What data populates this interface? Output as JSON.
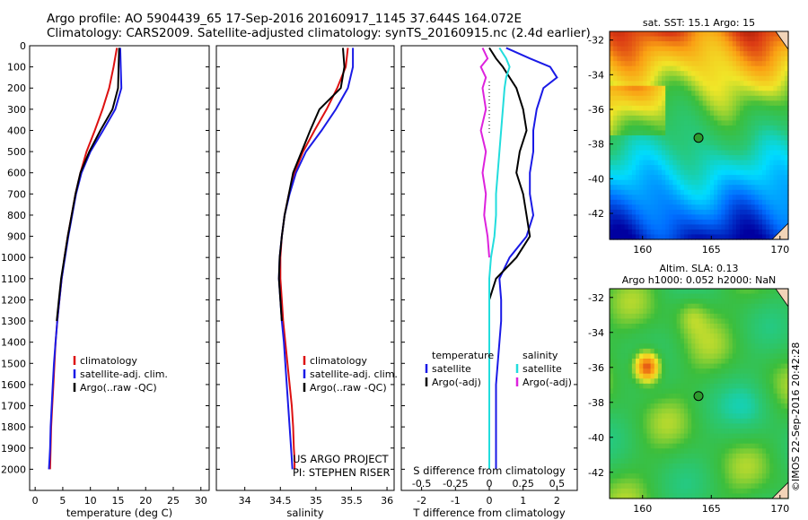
{
  "titles": {
    "line1": "Argo profile: AO 5904439_65 17-Sep-2016 20160917_1145 37.644S 164.072E",
    "line2": "Climatology: CARS2009. Satellite-adjusted climatology: synTS_20160915.nc (2.4d earlier)"
  },
  "colors": {
    "red": "#dd1111",
    "blue": "#1a1ae6",
    "black": "#000000",
    "cyan": "#22dddd",
    "magenta": "#dd22dd"
  },
  "credit": "©IMOS 22-Sep-2016 20:42:28",
  "project": {
    "line1": "US ARGO PROJECT",
    "line2": "PI: STEPHEN RISER"
  },
  "depth_ticks": [
    0,
    100,
    200,
    300,
    400,
    500,
    600,
    700,
    800,
    900,
    1000,
    1100,
    1200,
    1300,
    1400,
    1500,
    1600,
    1700,
    1800,
    1900,
    2000
  ],
  "chart_data": [
    {
      "type": "line",
      "xlabel": "temperature (deg C)",
      "xlim": [
        -1,
        31.5
      ],
      "ylim": [
        2100,
        0
      ],
      "x_ticks": [
        0,
        5,
        10,
        15,
        20,
        25,
        30
      ],
      "legend": [
        "climatology",
        "satellite-adj. clim.",
        "Argo(..raw -QC)"
      ],
      "depth": [
        10,
        100,
        200,
        300,
        400,
        500,
        600,
        700,
        800,
        900,
        1000,
        1100,
        1200,
        1300,
        1400,
        1500,
        1600,
        1700,
        1800,
        1900,
        1950,
        2000
      ],
      "series": [
        {
          "name": "climatology",
          "color": "#dd1111",
          "x": [
            14.8,
            14.2,
            13.4,
            12.2,
            10.8,
            9.3,
            8.2,
            7.3,
            6.6,
            5.9,
            5.3,
            4.8,
            4.4,
            4.0,
            3.7,
            3.5,
            3.3,
            3.1,
            2.9,
            2.8,
            2.75,
            2.7
          ]
        },
        {
          "name": "satellite-adj. clim.",
          "color": "#1a1ae6",
          "x": [
            15.4,
            15.5,
            15.6,
            14.5,
            12.3,
            10.0,
            8.4,
            7.4,
            6.7,
            6.0,
            5.4,
            4.8,
            4.4,
            4.0,
            3.7,
            3.4,
            3.2,
            3.0,
            2.8,
            2.7,
            2.6,
            2.5
          ]
        },
        {
          "name": "Argo(..raw -QC)",
          "color": "#000000",
          "x": [
            15.2,
            15.1,
            15.0,
            14.0,
            11.8,
            9.8,
            8.2,
            7.3,
            6.6,
            5.9,
            5.3,
            4.7,
            4.3,
            3.9
          ]
        }
      ]
    },
    {
      "type": "line",
      "xlabel": "salinity",
      "xlim": [
        33.6,
        36.1
      ],
      "ylim": [
        2100,
        0
      ],
      "x_ticks": [
        34,
        34.5,
        35,
        35.5,
        36
      ],
      "legend": [
        "climatology",
        "satellite-adj. clim.",
        "Argo(..raw -QC)"
      ],
      "depth": [
        10,
        100,
        200,
        300,
        400,
        500,
        600,
        700,
        800,
        900,
        1000,
        1100,
        1200,
        1300,
        1400,
        1500,
        1600,
        1700,
        1800,
        1900,
        1950,
        2000
      ],
      "series": [
        {
          "name": "climatology",
          "color": "#dd1111",
          "x": [
            35.45,
            35.42,
            35.3,
            35.15,
            34.98,
            34.82,
            34.7,
            34.62,
            34.56,
            34.52,
            34.5,
            34.5,
            34.52,
            34.54,
            34.57,
            34.6,
            34.63,
            34.66,
            34.68,
            34.69,
            34.7,
            34.7
          ]
        },
        {
          "name": "satellite-adj. clim.",
          "color": "#1a1ae6",
          "x": [
            35.52,
            35.52,
            35.45,
            35.28,
            35.08,
            34.86,
            34.72,
            34.63,
            34.56,
            34.52,
            34.49,
            34.48,
            34.5,
            34.52,
            34.55,
            34.57,
            34.59,
            34.61,
            34.63,
            34.65,
            34.66,
            34.67
          ]
        },
        {
          "name": "Argo(..raw -QC)",
          "color": "#000000",
          "x": [
            35.38,
            35.4,
            35.35,
            35.05,
            34.92,
            34.8,
            34.68,
            34.62,
            34.56,
            34.52,
            34.49,
            34.48,
            34.5,
            34.52
          ]
        }
      ]
    },
    {
      "type": "line",
      "xlabel": "T difference from climatology",
      "top_label": "S difference from climatology",
      "xlim": [
        -2.6,
        2.6
      ],
      "ylim": [
        2100,
        0
      ],
      "x_ticks": [
        -2,
        -1,
        0,
        1,
        2
      ],
      "top_ticks": [
        "-0.5",
        "-0.25",
        "0",
        "0.25",
        "0.5"
      ],
      "top_tick_positions": [
        -2,
        -1,
        0,
        1,
        2
      ],
      "legend_temperature": {
        "header": "temperature",
        "items": [
          "satellite",
          "Argo(-adj)"
        ]
      },
      "legend_salinity": {
        "header": "salinity",
        "items": [
          "satellite",
          "Argo(-adj)"
        ]
      },
      "depth": [
        10,
        60,
        100,
        150,
        200,
        300,
        400,
        500,
        600,
        700,
        800,
        900,
        1000,
        1100,
        1200,
        1300,
        1400,
        1500,
        1600,
        1700,
        1800,
        1900,
        2000
      ],
      "series": [
        {
          "name": "temperature satellite",
          "color": "#1a1ae6",
          "x": [
            0.5,
            1.2,
            1.8,
            2.0,
            1.6,
            1.4,
            1.3,
            1.3,
            1.2,
            1.2,
            1.3,
            1.1,
            0.6,
            0.3,
            0.35,
            0.35,
            0.3,
            0.25,
            0.2,
            0.2,
            0.2,
            0.2,
            0.2
          ]
        },
        {
          "name": "temperature Argo(-adj)",
          "color": "#000000",
          "x": [
            0.0,
            0.2,
            0.4,
            0.6,
            0.8,
            1.0,
            1.1,
            0.9,
            0.8,
            1.0,
            1.1,
            1.2,
            0.8,
            0.2,
            0.0
          ]
        },
        {
          "name": "salinity satellite",
          "color": "#22dddd",
          "x": [
            0.3,
            0.5,
            0.6,
            0.5,
            0.45,
            0.4,
            0.35,
            0.3,
            0.25,
            0.2,
            0.2,
            0.15,
            0.05,
            0.0,
            0.0,
            0.0,
            0.0,
            0.0,
            0.0,
            0.0,
            0.0,
            0.0,
            0.0
          ]
        },
        {
          "name": "salinity Argo(-adj)",
          "color": "#dd22dd",
          "x": [
            -0.2,
            -0.05,
            -0.25,
            -0.1,
            -0.2,
            -0.1,
            -0.25,
            -0.1,
            -0.2,
            -0.1,
            -0.15,
            -0.05,
            0.0
          ]
        }
      ]
    }
  ],
  "maps": [
    {
      "title": "sat. SST: 15.1  Argo: 15",
      "x_ticks": [
        160,
        165,
        170
      ],
      "y_ticks": [
        -32,
        -34,
        -36,
        -38,
        -40,
        -42
      ],
      "xlim": [
        157.6,
        170.6
      ],
      "ylim": [
        -43.5,
        -31.5
      ],
      "marker": {
        "lon": 164.07,
        "lat": -37.64
      }
    },
    {
      "title_line1": "Altim. SLA: 0.13",
      "title_line2": "Argo h1000: 0.052  h2000: NaN",
      "x_ticks": [
        160,
        165,
        170
      ],
      "y_ticks": [
        -32,
        -34,
        -36,
        -38,
        -40,
        -42
      ],
      "xlim": [
        157.6,
        170.6
      ],
      "ylim": [
        -43.5,
        -31.5
      ],
      "marker": {
        "lon": 164.07,
        "lat": -37.64
      }
    }
  ]
}
